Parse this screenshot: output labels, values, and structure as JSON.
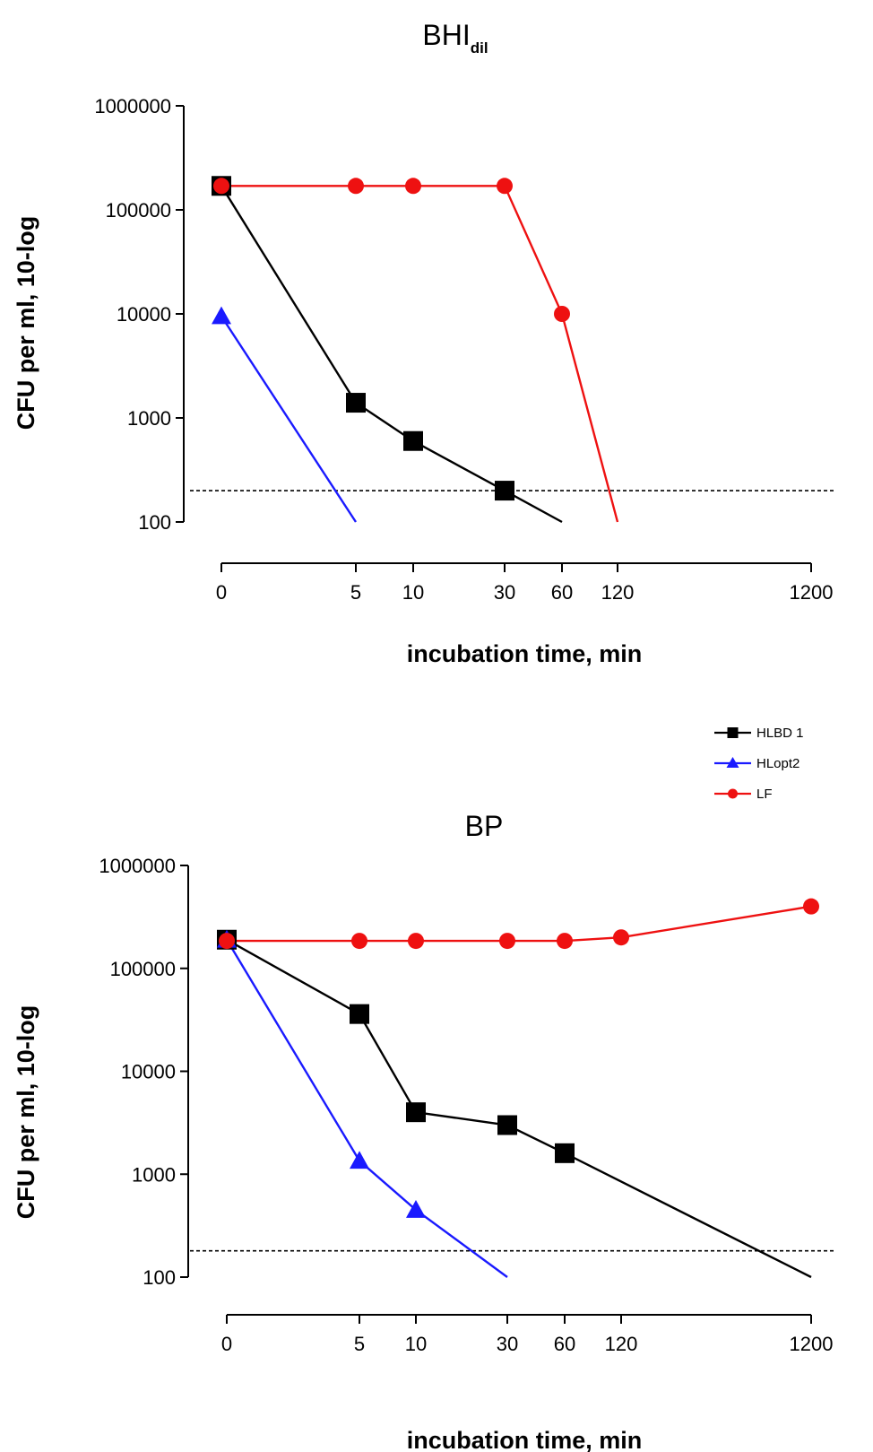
{
  "colors": {
    "HLBD 1": "#000000",
    "HLopt2": "#1a1aff",
    "LF": "#ee1111"
  },
  "markers": {
    "HLBD 1": "square",
    "HLopt2": "triangle",
    "LF": "circle"
  },
  "legend": {
    "placement": "top-right of lower panel",
    "entries": [
      "HLBD 1",
      "HLopt2",
      "LF"
    ]
  },
  "chart_data": [
    {
      "type": "line",
      "title": "BHI",
      "title_subscript": "dil",
      "xlabel": "incubation time, min",
      "ylabel": "CFU per ml, 10-log",
      "x_scale": "categorical (non-linear)",
      "y_scale": "log",
      "x_ticks": [
        "0",
        "5",
        "10",
        "30",
        "60",
        "120",
        "1200"
      ],
      "y_ticks": [
        "100",
        "1000",
        "10000",
        "100000",
        "1000000"
      ],
      "ylim": [
        100,
        1000000
      ],
      "detection_limit": 200,
      "series": [
        {
          "name": "HLBD 1",
          "points": [
            [
              0,
              170000
            ],
            [
              5,
              1400
            ],
            [
              10,
              600
            ],
            [
              30,
              200
            ]
          ],
          "line_end": [
            60,
            100
          ]
        },
        {
          "name": "HLopt2",
          "points": [
            [
              0,
              9500
            ]
          ],
          "line_end": [
            5,
            100
          ]
        },
        {
          "name": "LF",
          "points": [
            [
              0,
              170000
            ],
            [
              5,
              170000
            ],
            [
              10,
              170000
            ],
            [
              30,
              170000
            ],
            [
              60,
              10000
            ]
          ],
          "line_end": [
            120,
            100
          ]
        }
      ]
    },
    {
      "type": "line",
      "title": "BP",
      "xlabel": "incubation time, min",
      "ylabel": "CFU per ml, 10-log",
      "x_scale": "categorical (non-linear)",
      "y_scale": "log",
      "x_ticks": [
        "0",
        "5",
        "10",
        "30",
        "60",
        "120",
        "1200"
      ],
      "y_ticks": [
        "100",
        "1000",
        "10000",
        "100000",
        "1000000"
      ],
      "ylim": [
        100,
        1000000
      ],
      "detection_limit": 180,
      "series": [
        {
          "name": "HLBD 1",
          "points": [
            [
              0,
              190000
            ],
            [
              5,
              36000
            ],
            [
              10,
              4000
            ],
            [
              30,
              3000
            ],
            [
              60,
              1600
            ]
          ],
          "line_end": [
            1200,
            100
          ]
        },
        {
          "name": "HLopt2",
          "points": [
            [
              0,
              190000
            ],
            [
              5,
              1350
            ],
            [
              10,
              450
            ]
          ],
          "line_end": [
            30,
            100
          ]
        },
        {
          "name": "LF",
          "points": [
            [
              0,
              185000
            ],
            [
              5,
              185000
            ],
            [
              10,
              185000
            ],
            [
              30,
              185000
            ],
            [
              60,
              185000
            ],
            [
              120,
              200000
            ],
            [
              1200,
              400000
            ]
          ]
        }
      ]
    }
  ]
}
